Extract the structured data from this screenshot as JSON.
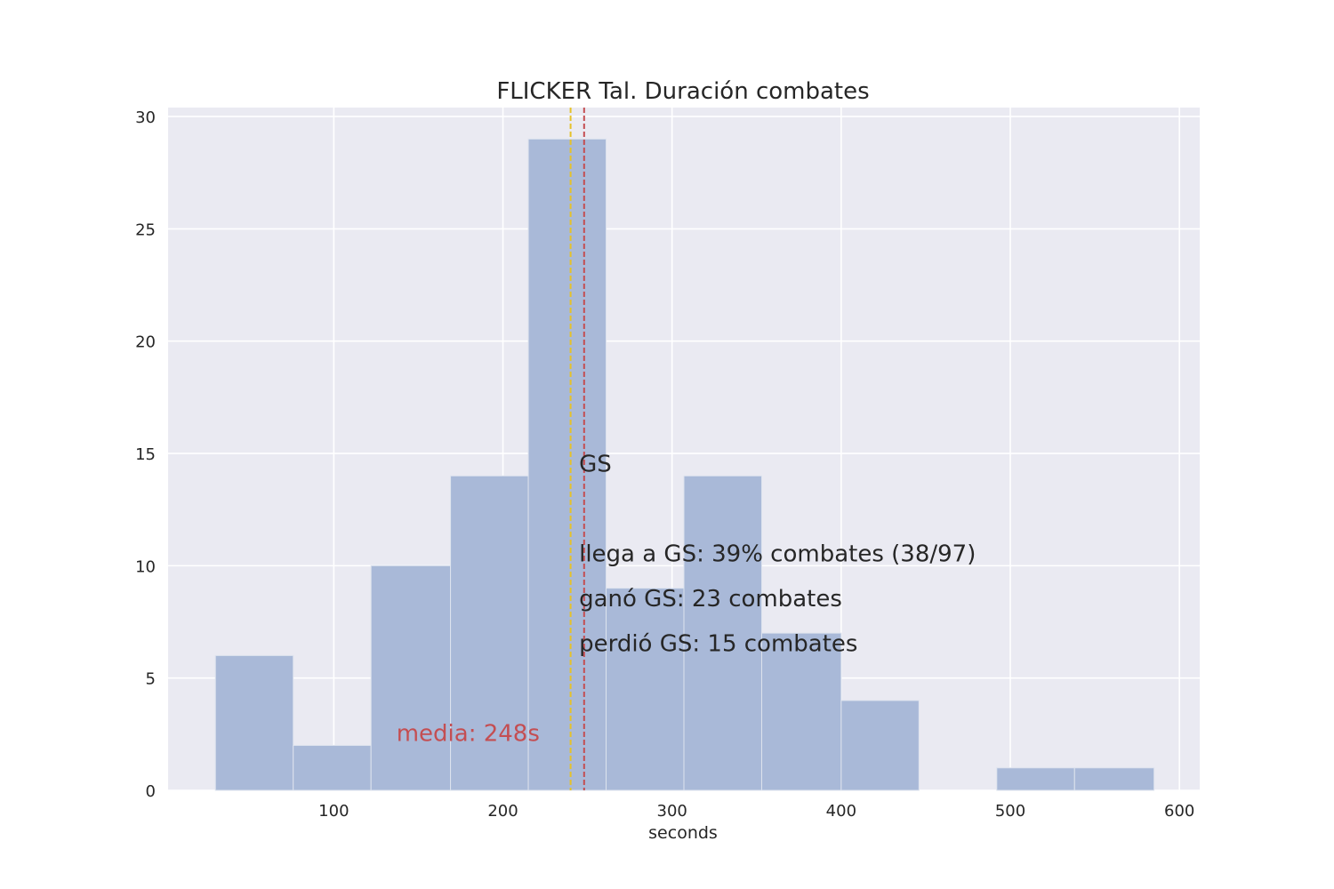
{
  "chart_data": {
    "type": "bar",
    "title": "FLICKER Tal. Duración combates",
    "xlabel": "seconds",
    "ylabel": "",
    "xlim": [
      2,
      612
    ],
    "ylim": [
      0,
      30.4
    ],
    "xticks": [
      100,
      200,
      300,
      400,
      500,
      600
    ],
    "yticks": [
      0,
      5,
      10,
      15,
      20,
      25,
      30
    ],
    "grid": true,
    "bins": [
      {
        "x0": 30,
        "x1": 76,
        "count": 6
      },
      {
        "x0": 76,
        "x1": 122,
        "count": 2
      },
      {
        "x0": 122,
        "x1": 169,
        "count": 10
      },
      {
        "x0": 169,
        "x1": 215,
        "count": 14
      },
      {
        "x0": 215,
        "x1": 261,
        "count": 29
      },
      {
        "x0": 261,
        "x1": 307,
        "count": 9
      },
      {
        "x0": 307,
        "x1": 353,
        "count": 14
      },
      {
        "x0": 353,
        "x1": 400,
        "count": 7
      },
      {
        "x0": 400,
        "x1": 446,
        "count": 4
      },
      {
        "x0": 446,
        "x1": 492,
        "count": 0
      },
      {
        "x0": 492,
        "x1": 538,
        "count": 1
      },
      {
        "x0": 538,
        "x1": 585,
        "count": 1
      }
    ],
    "vlines": [
      {
        "x": 240,
        "color": "#e6c229",
        "style": "dashed"
      },
      {
        "x": 248,
        "color": "#c44e52",
        "style": "dashed"
      }
    ],
    "mean_label": {
      "text": "media: 248s",
      "color": "#c44e52",
      "x": 137,
      "y": 2.2
    },
    "annotations": [
      {
        "text": "GS",
        "x": 245,
        "y": 14.2
      },
      {
        "text": "llega a GS: 39% combates (38/97)",
        "x": 245,
        "y": 10.2
      },
      {
        "text": "ganó GS: 23 combates",
        "x": 245,
        "y": 8.2
      },
      {
        "text": "perdió GS: 15 combates",
        "x": 245,
        "y": 6.2
      }
    ],
    "colors": {
      "bar": "#a9b9d8",
      "bar_edge": "#dde3ee",
      "background": "#eaeaf2",
      "grid": "#ffffff"
    }
  }
}
